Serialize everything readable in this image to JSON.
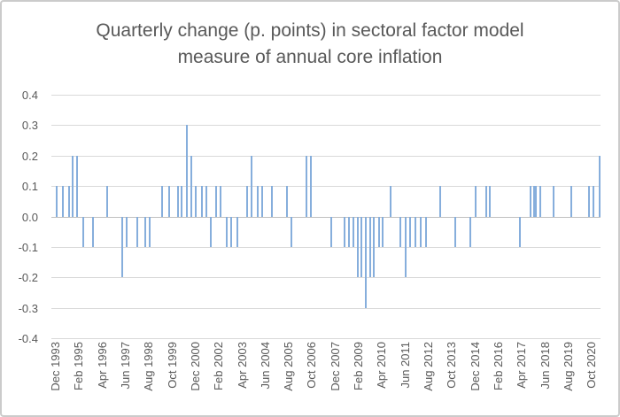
{
  "window": {
    "background": "#ffffff",
    "border_color": "#cbcbcb"
  },
  "chart_data": {
    "type": "bar",
    "title": "Quarterly change (p. points) in sectoral factor model measure of annual core inflation",
    "title_color": "#595959",
    "bar_color": "#86aedc",
    "gridline_color": "#d9d9d9",
    "zero_line_color": "#bfbfbf",
    "axis_label_color": "#595959",
    "legend_position": "none",
    "grid": true,
    "ylim": [
      -0.4,
      0.4
    ],
    "y_tick_step": 0.1,
    "y_ticks": [
      "0.4",
      "0.3",
      "0.2",
      "0.1",
      "0.0",
      "-0.1",
      "-0.2",
      "-0.3",
      "-0.4"
    ],
    "x_tick_labels": [
      {
        "label": "Dec 1993",
        "pos": 0.0064
      },
      {
        "label": "Feb 1995",
        "pos": 0.0489
      },
      {
        "label": "Apr 1996",
        "pos": 0.0913
      },
      {
        "label": "Jun 1997",
        "pos": 0.1338
      },
      {
        "label": "Aug 1998",
        "pos": 0.1762
      },
      {
        "label": "Oct 1999",
        "pos": 0.2187
      },
      {
        "label": "Dec 2000",
        "pos": 0.2611
      },
      {
        "label": "Feb 2002",
        "pos": 0.3035
      },
      {
        "label": "Apr 2003",
        "pos": 0.346
      },
      {
        "label": "Jun 2004",
        "pos": 0.3884
      },
      {
        "label": "Aug 2005",
        "pos": 0.4309
      },
      {
        "label": "Oct 2006",
        "pos": 0.4733
      },
      {
        "label": "Dec 2007",
        "pos": 0.5158
      },
      {
        "label": "Feb 2009",
        "pos": 0.5582
      },
      {
        "label": "Apr 2010",
        "pos": 0.6006
      },
      {
        "label": "Jun 2011",
        "pos": 0.6431
      },
      {
        "label": "Aug 2012",
        "pos": 0.6855
      },
      {
        "label": "Oct 2013",
        "pos": 0.728
      },
      {
        "label": "Dec 2014",
        "pos": 0.7704
      },
      {
        "label": "Feb 2016",
        "pos": 0.8129
      },
      {
        "label": "Apr 2017",
        "pos": 0.8553
      },
      {
        "label": "Jun 2018",
        "pos": 0.8978
      },
      {
        "label": "Aug 2019",
        "pos": 0.9402
      },
      {
        "label": "Oct 2020",
        "pos": 0.9826
      }
    ],
    "series": [
      {
        "period": "Mar 1994",
        "value": 0.1,
        "pos": 0.0092
      },
      {
        "period": "Jun 1994",
        "value": 0.1,
        "pos": 0.0214
      },
      {
        "period": "Sep 1994",
        "value": 0.1,
        "pos": 0.0317
      },
      {
        "period": "Dec 1994",
        "value": 0.2,
        "pos": 0.0391
      },
      {
        "period": "Mar 1995",
        "value": 0.2,
        "pos": 0.0466
      },
      {
        "period": "Jun 1995",
        "value": -0.1,
        "pos": 0.0574
      },
      {
        "period": "Dec 1995",
        "value": -0.1,
        "pos": 0.0751
      },
      {
        "period": "Sep 1996",
        "value": 0.1,
        "pos": 0.1018
      },
      {
        "period": "Jun 1997",
        "value": -0.2,
        "pos": 0.1297
      },
      {
        "period": "Sep 1997",
        "value": -0.1,
        "pos": 0.1378
      },
      {
        "period": "Mar 1998",
        "value": -0.1,
        "pos": 0.1564
      },
      {
        "period": "Jun 1998",
        "value": -0.1,
        "pos": 0.1704
      },
      {
        "period": "Sep 1998",
        "value": -0.1,
        "pos": 0.179
      },
      {
        "period": "Jun 1999",
        "value": 0.1,
        "pos": 0.2021
      },
      {
        "period": "Sep 1999",
        "value": 0.1,
        "pos": 0.2143
      },
      {
        "period": "Mar 2000",
        "value": 0.1,
        "pos": 0.2304
      },
      {
        "period": "Jun 2000",
        "value": 0.1,
        "pos": 0.2363
      },
      {
        "period": "Sep 2000",
        "value": 0.3,
        "pos": 0.2465
      },
      {
        "period": "Dec 2000",
        "value": 0.2,
        "pos": 0.2545
      },
      {
        "period": "Mar 2001",
        "value": 0.1,
        "pos": 0.2637
      },
      {
        "period": "Jun 2001",
        "value": 0.1,
        "pos": 0.2749
      },
      {
        "period": "Sep 2001",
        "value": 0.1,
        "pos": 0.2822
      },
      {
        "period": "Dec 2001",
        "value": -0.1,
        "pos": 0.2905
      },
      {
        "period": "Mar 2002",
        "value": 0.1,
        "pos": 0.2995
      },
      {
        "period": "Jun 2002",
        "value": 0.1,
        "pos": 0.3082
      },
      {
        "period": "Sep 2002",
        "value": -0.1,
        "pos": 0.3199
      },
      {
        "period": "Dec 2002",
        "value": -0.1,
        "pos": 0.328
      },
      {
        "period": "Mar 2003",
        "value": -0.1,
        "pos": 0.3388
      },
      {
        "period": "Jun 2003",
        "value": 0.1,
        "pos": 0.3564
      },
      {
        "period": "Sep 2003",
        "value": 0.2,
        "pos": 0.365
      },
      {
        "period": "Mar 2004",
        "value": 0.1,
        "pos": 0.3762
      },
      {
        "period": "Jun 2004",
        "value": 0.1,
        "pos": 0.3842
      },
      {
        "period": "Dec 2004",
        "value": 0.1,
        "pos": 0.4014
      },
      {
        "period": "Jun 2005",
        "value": 0.1,
        "pos": 0.4288
      },
      {
        "period": "Sep 2005",
        "value": -0.1,
        "pos": 0.4378
      },
      {
        "period": "Jun 2006",
        "value": 0.2,
        "pos": 0.4646
      },
      {
        "period": "Sep 2006",
        "value": 0.2,
        "pos": 0.4732
      },
      {
        "period": "Sep 2007",
        "value": -0.1,
        "pos": 0.5096
      },
      {
        "period": "Jun 2008",
        "value": -0.1,
        "pos": 0.5338
      },
      {
        "period": "Sep 2008",
        "value": -0.1,
        "pos": 0.5418
      },
      {
        "period": "Dec 2008",
        "value": -0.1,
        "pos": 0.5498
      },
      {
        "period": "Mar 2009",
        "value": -0.2,
        "pos": 0.5574
      },
      {
        "period": "Jun 2009",
        "value": -0.2,
        "pos": 0.5643
      },
      {
        "period": "Sep 2009",
        "value": -0.3,
        "pos": 0.5719
      },
      {
        "period": "Dec 2009",
        "value": -0.2,
        "pos": 0.5799
      },
      {
        "period": "Mar 2010",
        "value": -0.2,
        "pos": 0.5879
      },
      {
        "period": "Jun 2010",
        "value": -0.1,
        "pos": 0.596
      },
      {
        "period": "Sep 2010",
        "value": -0.1,
        "pos": 0.604
      },
      {
        "period": "Dec 2010",
        "value": 0.1,
        "pos": 0.6185
      },
      {
        "period": "Mar 2011",
        "value": -0.1,
        "pos": 0.6362
      },
      {
        "period": "Jun 2011",
        "value": -0.2,
        "pos": 0.6452
      },
      {
        "period": "Sep 2011",
        "value": -0.1,
        "pos": 0.6532
      },
      {
        "period": "Dec 2011",
        "value": -0.1,
        "pos": 0.6629
      },
      {
        "period": "Mar 2012",
        "value": -0.1,
        "pos": 0.672
      },
      {
        "period": "Jun 2012",
        "value": -0.1,
        "pos": 0.6817
      },
      {
        "period": "Mar 2013",
        "value": 0.1,
        "pos": 0.7074
      },
      {
        "period": "Dec 2013",
        "value": -0.1,
        "pos": 0.7352
      },
      {
        "period": "Sep 2014",
        "value": -0.1,
        "pos": 0.7632
      },
      {
        "period": "Dec 2014",
        "value": 0.1,
        "pos": 0.7728
      },
      {
        "period": "Jun 2015",
        "value": 0.1,
        "pos": 0.7915
      },
      {
        "period": "Sep 2015",
        "value": 0.1,
        "pos": 0.7986
      },
      {
        "period": "Dec 2016",
        "value": -0.1,
        "pos": 0.8532
      },
      {
        "period": "Jun 2017",
        "value": 0.1,
        "pos": 0.8719
      },
      {
        "period": "Sep 2017",
        "value": 0.1,
        "pos": 0.8783
      },
      {
        "period": "Dec 2017",
        "value": 0.1,
        "pos": 0.8826
      },
      {
        "period": "Mar 2018",
        "value": 0.1,
        "pos": 0.8907
      },
      {
        "period": "Sep 2018",
        "value": 0.1,
        "pos": 0.9148
      },
      {
        "period": "Jun 2019",
        "value": 0.1,
        "pos": 0.9469
      },
      {
        "period": "Jun 2020",
        "value": 0.1,
        "pos": 0.9791
      },
      {
        "period": "Sep 2020",
        "value": 0.1,
        "pos": 0.9871
      },
      {
        "period": "Dec 2020",
        "value": 0.2,
        "pos": 0.9976
      }
    ]
  }
}
